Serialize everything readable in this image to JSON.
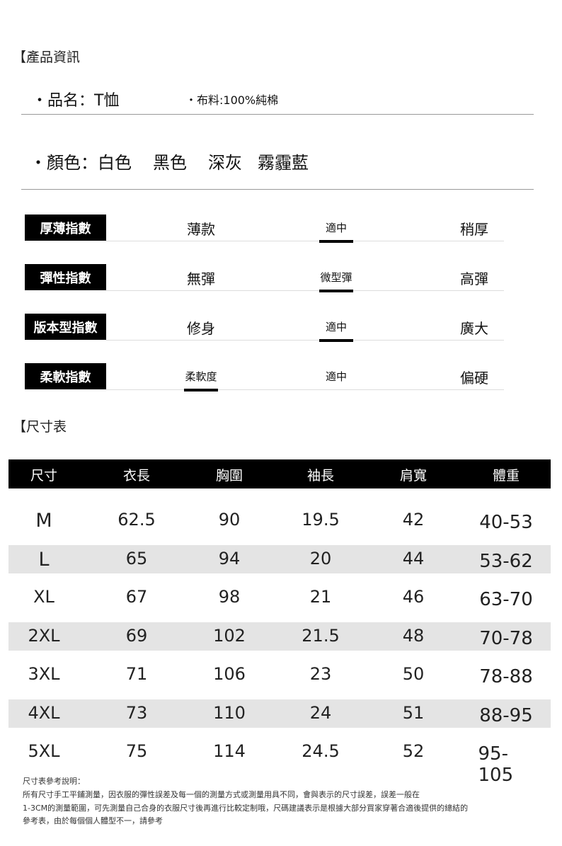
{
  "product_info": {
    "heading": "【產品資訊",
    "name": "・品名：T恤",
    "fabric": "・布料:100%純棉",
    "colors_label": "・顏色：",
    "colors": [
      "白色",
      "黑色",
      "深灰",
      "霧霾藍"
    ]
  },
  "indices": [
    {
      "label": "厚薄指數",
      "options": [
        "薄款",
        "適中",
        "稍厚"
      ],
      "selected": 1
    },
    {
      "label": "彈性指數",
      "options": [
        "無彈",
        "微型彈",
        "高彈"
      ],
      "selected": 1
    },
    {
      "label": "版本型指數",
      "options": [
        "修身",
        "適中",
        "廣大"
      ],
      "selected": 1
    },
    {
      "label": "柔軟指數",
      "options": [
        "柔軟度",
        "適中",
        "偏硬"
      ],
      "selected": 0
    }
  ],
  "size_chart": {
    "heading": "【尺寸表",
    "headers": [
      "尺寸",
      "衣長",
      "胸圍",
      "袖長",
      "肩寬",
      "體重"
    ],
    "rows": [
      [
        "M",
        "62.5",
        "90",
        "19.5",
        "42",
        "40-53"
      ],
      [
        "L",
        "65",
        "94",
        "20",
        "44",
        "53-62"
      ],
      [
        "XL",
        "67",
        "98",
        "21",
        "46",
        "63-70"
      ],
      [
        "2XL",
        "69",
        "102",
        "21.5",
        "48",
        "70-78"
      ],
      [
        "3XL",
        "71",
        "106",
        "23",
        "50",
        "78-88"
      ],
      [
        "4XL",
        "73",
        "110",
        "24",
        "51",
        "88-95"
      ],
      [
        "5XL",
        "75",
        "114",
        "24.5",
        "52",
        "95-105"
      ]
    ]
  },
  "notes": {
    "title": "尺寸表參考說明：",
    "lines": [
      "所有尺寸手工平鋪測量，因衣服的彈性誤差及每一個的測量方式或測量用具不同，會與表示的尺寸誤差，誤差一般在",
      "1-3CM的測量範圍，可先測量自己合身的衣服尺寸後再進行比較定制哦，尺碼建議表示是根據大部分買家穿著合適後提供的總結的",
      "參考表，由於每個個人體型不一，請參考"
    ]
  }
}
